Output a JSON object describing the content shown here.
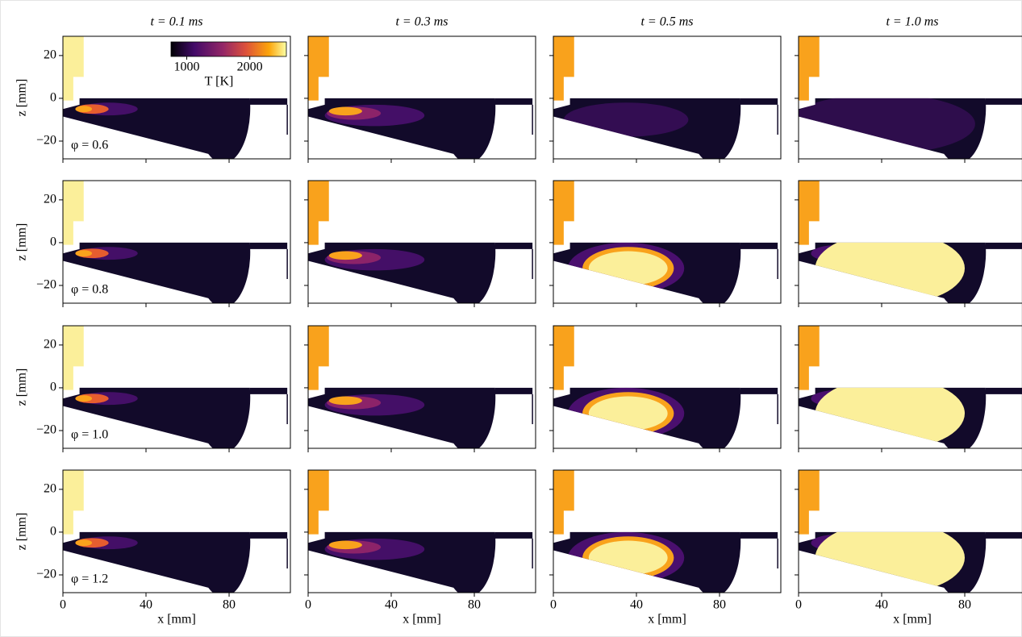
{
  "columns": [
    "t = 0.1 ms",
    "t = 0.3 ms",
    "t = 0.5 ms",
    "t = 1.0 ms"
  ],
  "rows": [
    "φ = 0.6",
    "φ = 0.8",
    "φ = 1.0",
    "φ = 1.2"
  ],
  "x_axis": {
    "label": "x [mm]",
    "lim": [
      0,
      109.5
    ],
    "ticks": [
      0,
      40,
      80
    ]
  },
  "z_axis": {
    "label": "z [mm]",
    "lim": [
      -28.3,
      29
    ],
    "ticks": [
      {
        "value": -20,
        "label": "−20"
      },
      0,
      20
    ]
  },
  "colorbar": {
    "label": "T [K]",
    "lim": [
      750,
      2580
    ],
    "ticks": [
      1000,
      2000
    ]
  }
}
